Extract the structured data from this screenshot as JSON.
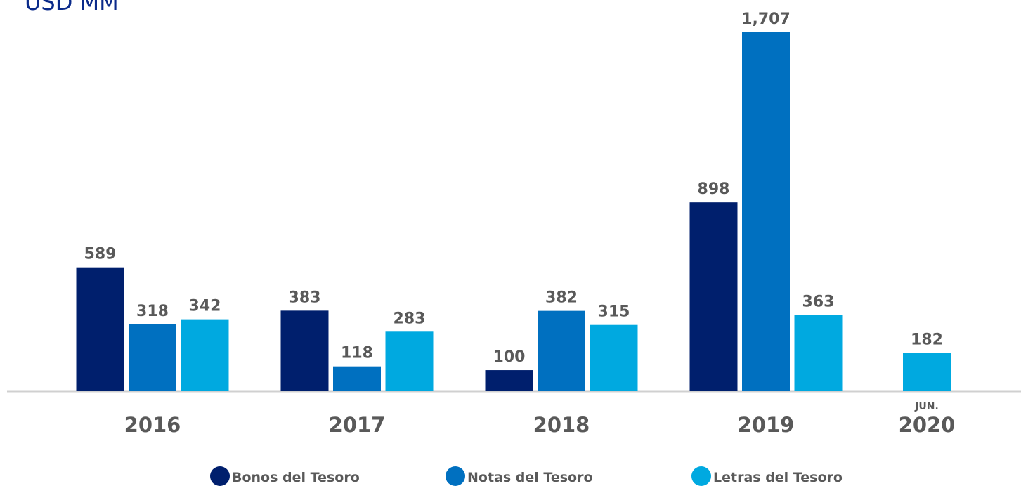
{
  "chart_data": {
    "type": "bar",
    "title": "USD MM",
    "categories": [
      "2016",
      "2017",
      "2018",
      "2019",
      "2020"
    ],
    "annotations": [
      "JUN."
    ],
    "series": [
      {
        "name": "Bonos del Tesoro",
        "color": "#001f6d",
        "values": [
          589,
          383,
          100,
          898,
          null
        ],
        "value_labels": [
          "589",
          "383",
          "100",
          "898",
          null
        ]
      },
      {
        "name": "Notas del Tesoro",
        "color": "#0070c0",
        "values": [
          318,
          118,
          382,
          1707,
          null
        ],
        "value_labels": [
          "318",
          "118",
          "382",
          "1,707",
          null
        ]
      },
      {
        "name": "Letras del Tesoro",
        "color": "#00a9e0",
        "values": [
          342,
          283,
          315,
          363,
          182
        ],
        "value_labels": [
          "342",
          "283",
          "315",
          "363",
          "182"
        ]
      }
    ]
  }
}
